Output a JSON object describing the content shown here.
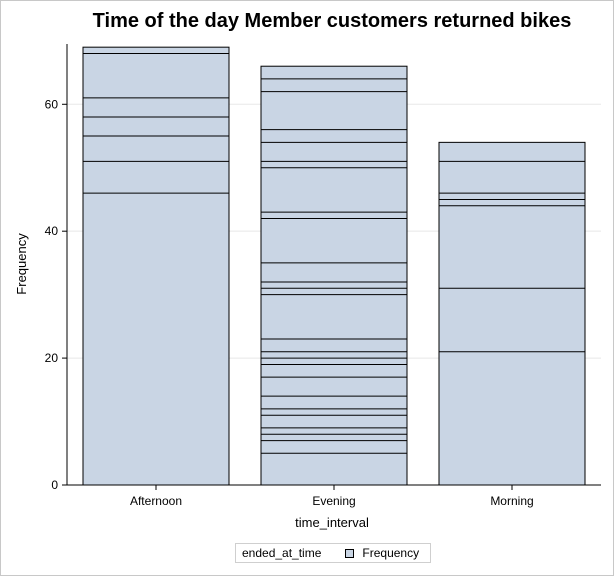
{
  "colors": {
    "bar_fill": "#c9d5e4",
    "bar_stroke": "#000000",
    "grid": "#e8e8e8"
  },
  "chart_data": {
    "type": "bar",
    "stacked": true,
    "title": "Time of the day Member customers returned bikes",
    "xlabel": "time_interval",
    "ylabel": "Frequency",
    "categories": [
      "Afternoon",
      "Evening",
      "Morning"
    ],
    "values": [
      69,
      66,
      54
    ],
    "segment_boundaries": [
      [
        46,
        51,
        55,
        58,
        61,
        68,
        69
      ],
      [
        5,
        7,
        8,
        9,
        11,
        12,
        14,
        17,
        19,
        20,
        21,
        23,
        30,
        31,
        32,
        35,
        42,
        43,
        50,
        51,
        54,
        56,
        62,
        64,
        66
      ],
      [
        21,
        31,
        44,
        45,
        46,
        51,
        54
      ]
    ],
    "ylim": [
      0,
      69.5
    ],
    "yticks": [
      0,
      20,
      40,
      60
    ],
    "grid": true,
    "legend": {
      "title": "ended_at_time",
      "entries": [
        "Frequency"
      ],
      "position": "bottom"
    }
  }
}
